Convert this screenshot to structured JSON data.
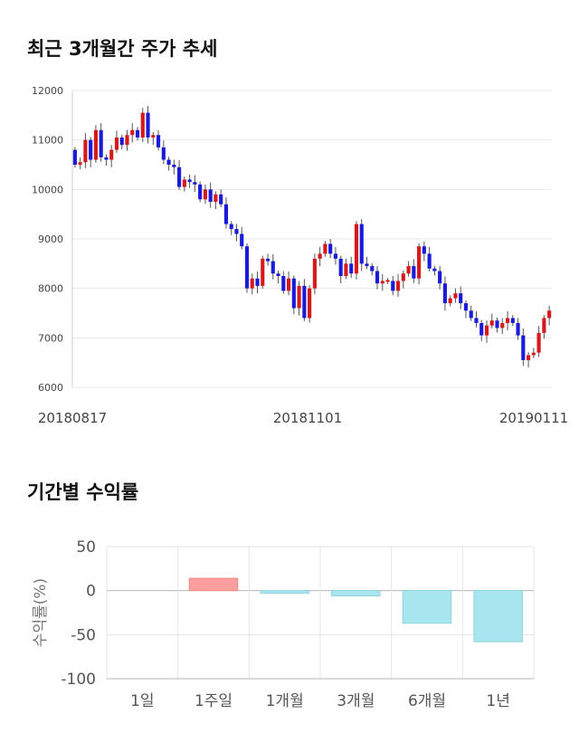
{
  "chart_data": [
    {
      "type": "candlestick",
      "title": "최근 3개월간 주가 추세",
      "ylim": [
        6000,
        12000
      ],
      "yticks": [
        "12000",
        "11000",
        "10000",
        "9000",
        "8000",
        "7000",
        "6000"
      ],
      "xtick_labels": [
        "20180817",
        "20181101",
        "20190111"
      ],
      "up_color": "#d7191c",
      "down_color": "#1a1adb",
      "close": [
        10500,
        10550,
        11000,
        10600,
        11200,
        10650,
        10600,
        10800,
        11050,
        10900,
        11100,
        11200,
        11050,
        11550,
        11050,
        11100,
        10850,
        10600,
        10500,
        10450,
        10050,
        10200,
        10150,
        10100,
        9800,
        10000,
        9750,
        9900,
        9700,
        9300,
        9200,
        9100,
        8850,
        8000,
        8200,
        8050,
        8600,
        8550,
        8300,
        8250,
        7950,
        8200,
        7600,
        8050,
        7400,
        8000,
        8600,
        8700,
        8900,
        8700,
        8600,
        8250,
        8500,
        8300,
        9300,
        8500,
        8450,
        8350,
        8100,
        8150,
        8150,
        7950,
        8150,
        8300,
        8450,
        8200,
        8850,
        8700,
        8400,
        8350,
        8100,
        7700,
        7800,
        7900,
        7700,
        7550,
        7400,
        7300,
        7050,
        7250,
        7350,
        7200,
        7300,
        7400,
        7300,
        7050,
        6550,
        6650,
        6700,
        7100,
        7400,
        7550
      ]
    },
    {
      "type": "bar",
      "title": "기간별 수익률",
      "ylabel": "수익률(%)",
      "categories": [
        "1일",
        "1주일",
        "1개월",
        "3개월",
        "6개월",
        "1년"
      ],
      "values": [
        0,
        14,
        -3,
        -6,
        -37,
        -58
      ],
      "ylim": [
        -100,
        50
      ],
      "yticks": [
        "50",
        "0",
        "-50",
        "-100"
      ],
      "positive_color": "#ff9e9e",
      "negative_color": "#a8e6ef"
    }
  ]
}
